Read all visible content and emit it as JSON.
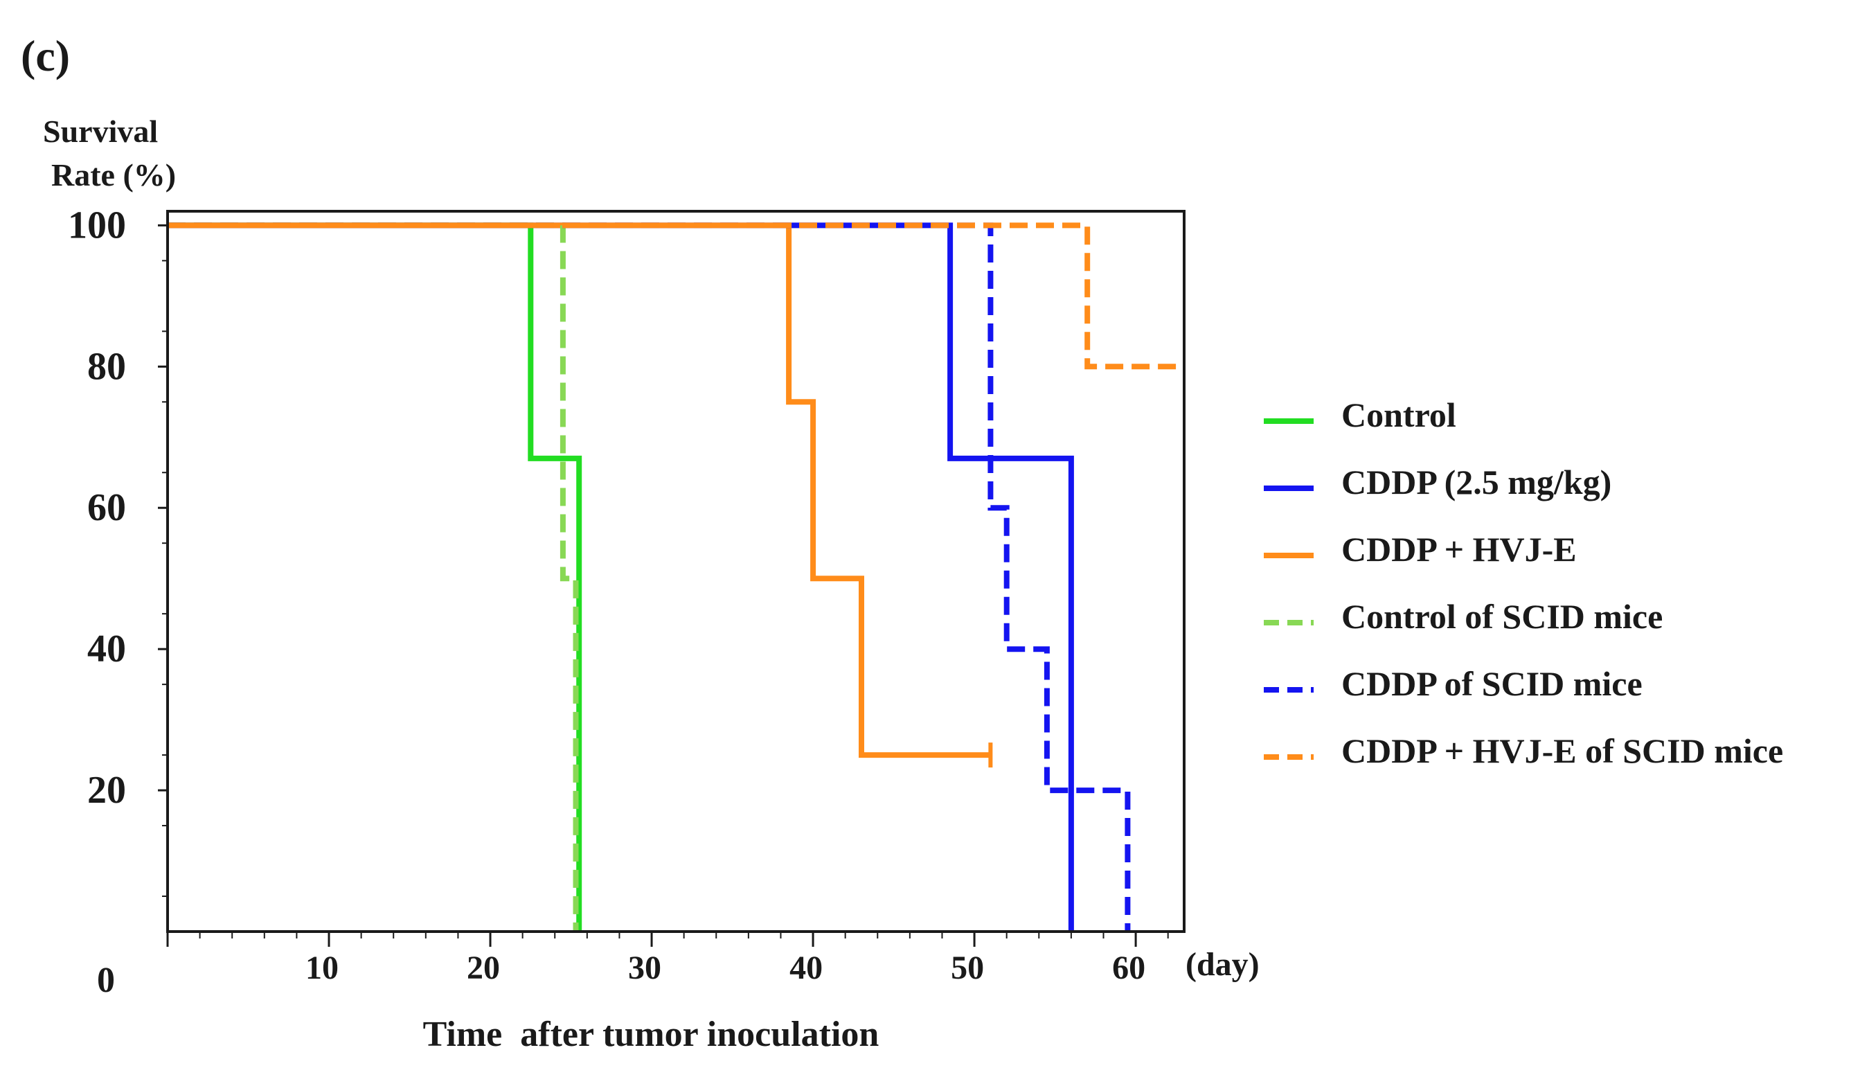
{
  "chart_data": {
    "type": "line",
    "subtype": "kaplan-meier",
    "panel_label": "(c)",
    "ylabel_lines": [
      "Survival",
      "Rate (%)"
    ],
    "xlabel": "Time  after tumor inoculation",
    "x_unit": "(day)",
    "xlim": [
      0,
      63
    ],
    "ylim": [
      0,
      102
    ],
    "x_ticks": [
      10,
      20,
      30,
      40,
      50,
      60
    ],
    "y_ticks": [
      20,
      40,
      60,
      80,
      100
    ],
    "origin_label": "0",
    "legend_position": "right",
    "series": [
      {
        "name": "Control",
        "color": "#22dd22",
        "dashed": false,
        "x": [
          0,
          22.5,
          22.5,
          25.5,
          25.5
        ],
        "y": [
          100,
          100,
          67,
          67,
          0
        ]
      },
      {
        "name": "CDDP  (2.5 mg/kg)",
        "color": "#1414f0",
        "dashed": false,
        "x": [
          0,
          48.5,
          48.5,
          56,
          56
        ],
        "y": [
          100,
          100,
          67,
          67,
          0
        ]
      },
      {
        "name": "CDDP + HVJ-E",
        "color": "#ff8c1a",
        "dashed": false,
        "x": [
          0,
          38.5,
          38.5,
          40,
          40,
          43,
          43,
          51
        ],
        "y": [
          100,
          100,
          75,
          75,
          50,
          50,
          25,
          25
        ],
        "censored": [
          [
            51,
            25
          ]
        ]
      },
      {
        "name": "Control of SCID mice",
        "color": "#88d855",
        "dashed": true,
        "x": [
          0,
          24.5,
          24.5,
          25.3,
          25.3
        ],
        "y": [
          100,
          100,
          50,
          50,
          0
        ]
      },
      {
        "name": "CDDP of SCID mice",
        "color": "#1414f0",
        "dashed": true,
        "x": [
          0,
          51,
          51,
          52,
          52,
          54.5,
          54.5,
          59.5,
          59.5
        ],
        "y": [
          100,
          100,
          60,
          60,
          40,
          40,
          20,
          20,
          0
        ]
      },
      {
        "name": "CDDP + HVJ-E of SCID mice",
        "color": "#ff8c1a",
        "dashed": true,
        "x": [
          0,
          57,
          57,
          63
        ],
        "y": [
          100,
          100,
          80,
          80
        ]
      }
    ]
  }
}
